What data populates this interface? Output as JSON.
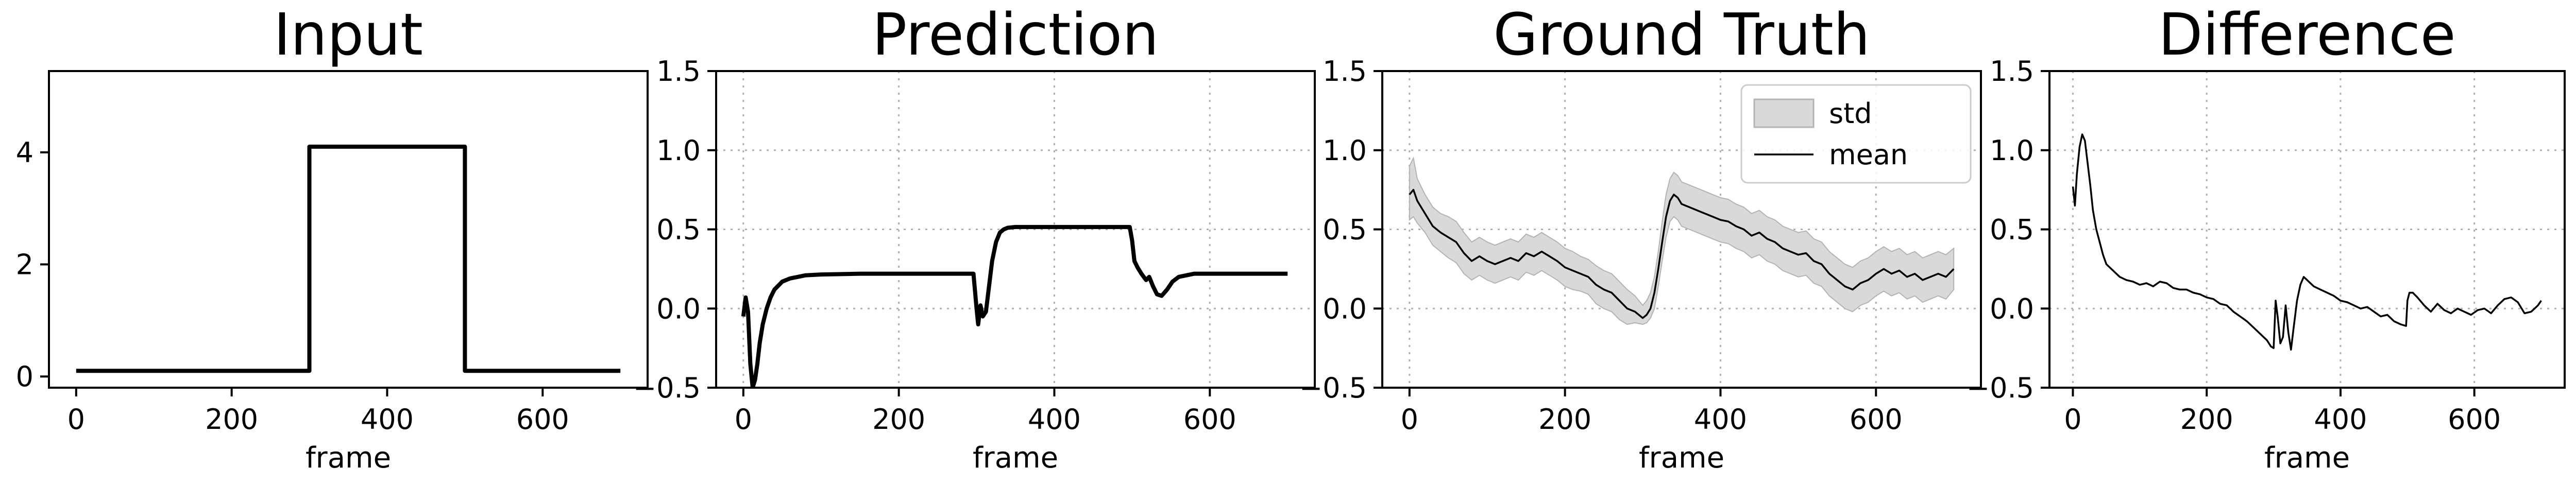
{
  "chart_data": [
    {
      "type": "line",
      "title": "Input",
      "xlabel": "frame",
      "ylabel": "",
      "xlim": [
        -35,
        735
      ],
      "ylim": [
        -0.2,
        5.45
      ],
      "xticks": [
        0,
        200,
        400,
        600
      ],
      "yticks": [
        0,
        2,
        4
      ],
      "ytick_labels": [
        "0",
        "2",
        "4"
      ],
      "grid": false,
      "series": [
        {
          "color": "#000000",
          "x": [
            0,
            300,
            300,
            500,
            500,
            700
          ],
          "y": [
            0.1,
            0.1,
            4.1,
            4.1,
            0.1,
            0.1
          ]
        }
      ]
    },
    {
      "type": "line",
      "title": "Prediction",
      "xlabel": "frame",
      "ylabel": "",
      "xlim": [
        -35,
        735
      ],
      "ylim": [
        -0.5,
        1.5
      ],
      "xticks": [
        0,
        200,
        400,
        600
      ],
      "yticks": [
        -0.5,
        0.0,
        0.5,
        1.0,
        1.5
      ],
      "ytick_labels": [
        "−0.5",
        "0.0",
        "0.5",
        "1.0",
        "1.5"
      ],
      "grid": true,
      "series": [
        {
          "color": "#000000",
          "x": [
            0,
            3,
            6,
            9,
            12,
            15,
            18,
            21,
            25,
            30,
            35,
            40,
            50,
            60,
            70,
            80,
            100,
            150,
            200,
            250,
            296,
            300,
            302,
            305,
            308,
            312,
            315,
            320,
            325,
            330,
            335,
            340,
            350,
            400,
            450,
            497,
            500,
            503,
            507,
            512,
            518,
            522,
            527,
            532,
            538,
            545,
            552,
            560,
            570,
            580,
            600,
            650,
            700
          ],
          "y": [
            -0.05,
            0.07,
            -0.02,
            -0.35,
            -0.5,
            -0.45,
            -0.35,
            -0.22,
            -0.1,
            0.0,
            0.07,
            0.12,
            0.17,
            0.19,
            0.2,
            0.21,
            0.215,
            0.22,
            0.22,
            0.22,
            0.22,
            0.0,
            -0.1,
            0.02,
            -0.05,
            -0.02,
            0.1,
            0.3,
            0.42,
            0.48,
            0.5,
            0.51,
            0.515,
            0.515,
            0.515,
            0.515,
            0.43,
            0.3,
            0.26,
            0.22,
            0.18,
            0.2,
            0.14,
            0.09,
            0.08,
            0.12,
            0.17,
            0.2,
            0.21,
            0.22,
            0.22,
            0.22,
            0.22
          ]
        }
      ]
    },
    {
      "type": "line",
      "title": "Ground Truth",
      "xlabel": "frame",
      "ylabel": "",
      "xlim": [
        -35,
        735
      ],
      "ylim": [
        -0.5,
        1.5
      ],
      "xticks": [
        0,
        200,
        400,
        600
      ],
      "yticks": [
        -0.5,
        0.0,
        0.5,
        1.0,
        1.5
      ],
      "ytick_labels": [
        "−0.5",
        "0.0",
        "0.5",
        "1.0",
        "1.5"
      ],
      "grid": true,
      "legend": [
        "std",
        "mean"
      ],
      "legend_position": "upper right",
      "series": [
        {
          "name": "mean",
          "color": "#000000",
          "x": [
            0,
            5,
            10,
            20,
            30,
            40,
            50,
            60,
            70,
            80,
            90,
            100,
            110,
            120,
            130,
            140,
            150,
            160,
            170,
            180,
            190,
            200,
            210,
            220,
            230,
            240,
            250,
            260,
            270,
            280,
            290,
            300,
            305,
            310,
            315,
            320,
            325,
            330,
            335,
            340,
            345,
            350,
            360,
            370,
            380,
            390,
            400,
            410,
            420,
            430,
            440,
            450,
            460,
            470,
            480,
            490,
            500,
            510,
            520,
            530,
            540,
            550,
            560,
            570,
            580,
            590,
            600,
            610,
            620,
            630,
            640,
            650,
            660,
            670,
            680,
            690,
            700
          ],
          "y": [
            0.72,
            0.75,
            0.68,
            0.6,
            0.52,
            0.48,
            0.45,
            0.42,
            0.35,
            0.3,
            0.33,
            0.3,
            0.28,
            0.3,
            0.32,
            0.3,
            0.35,
            0.33,
            0.36,
            0.33,
            0.3,
            0.26,
            0.24,
            0.22,
            0.2,
            0.15,
            0.12,
            0.1,
            0.05,
            0.0,
            -0.02,
            -0.06,
            -0.04,
            0.0,
            0.1,
            0.25,
            0.42,
            0.58,
            0.68,
            0.72,
            0.7,
            0.66,
            0.64,
            0.62,
            0.6,
            0.58,
            0.56,
            0.55,
            0.52,
            0.5,
            0.46,
            0.48,
            0.44,
            0.42,
            0.38,
            0.36,
            0.34,
            0.35,
            0.3,
            0.28,
            0.22,
            0.18,
            0.14,
            0.12,
            0.16,
            0.18,
            0.22,
            0.25,
            0.22,
            0.24,
            0.2,
            0.22,
            0.18,
            0.2,
            0.22,
            0.2,
            0.25
          ]
        }
      ],
      "band": {
        "name": "std",
        "color": "#d9d9d9",
        "edge_color": "#b3b3b3",
        "x": [
          0,
          5,
          10,
          20,
          30,
          40,
          50,
          60,
          70,
          80,
          90,
          100,
          110,
          120,
          130,
          140,
          150,
          160,
          170,
          180,
          190,
          200,
          210,
          220,
          230,
          240,
          250,
          260,
          270,
          280,
          290,
          300,
          305,
          310,
          315,
          320,
          325,
          330,
          335,
          340,
          345,
          350,
          360,
          370,
          380,
          390,
          400,
          410,
          420,
          430,
          440,
          450,
          460,
          470,
          480,
          490,
          500,
          510,
          520,
          530,
          540,
          550,
          560,
          570,
          580,
          590,
          600,
          610,
          620,
          630,
          640,
          650,
          660,
          670,
          680,
          690,
          700
        ],
        "upper": [
          0.9,
          0.95,
          0.82,
          0.72,
          0.64,
          0.6,
          0.58,
          0.55,
          0.48,
          0.42,
          0.45,
          0.42,
          0.4,
          0.42,
          0.44,
          0.42,
          0.47,
          0.45,
          0.48,
          0.45,
          0.42,
          0.38,
          0.36,
          0.33,
          0.31,
          0.27,
          0.24,
          0.22,
          0.17,
          0.12,
          0.08,
          0.02,
          0.05,
          0.1,
          0.2,
          0.36,
          0.55,
          0.72,
          0.82,
          0.86,
          0.84,
          0.8,
          0.78,
          0.76,
          0.74,
          0.72,
          0.7,
          0.69,
          0.66,
          0.64,
          0.6,
          0.62,
          0.58,
          0.56,
          0.52,
          0.5,
          0.48,
          0.49,
          0.44,
          0.42,
          0.36,
          0.32,
          0.28,
          0.26,
          0.3,
          0.32,
          0.36,
          0.39,
          0.36,
          0.38,
          0.34,
          0.36,
          0.32,
          0.34,
          0.36,
          0.34,
          0.38
        ],
        "lower": [
          0.56,
          0.58,
          0.54,
          0.48,
          0.4,
          0.36,
          0.32,
          0.29,
          0.22,
          0.18,
          0.21,
          0.18,
          0.16,
          0.18,
          0.2,
          0.18,
          0.23,
          0.21,
          0.24,
          0.21,
          0.18,
          0.14,
          0.12,
          0.11,
          0.09,
          0.03,
          0.0,
          -0.02,
          -0.07,
          -0.1,
          -0.09,
          -0.1,
          -0.09,
          -0.06,
          0.0,
          0.14,
          0.3,
          0.45,
          0.55,
          0.58,
          0.56,
          0.52,
          0.5,
          0.48,
          0.46,
          0.44,
          0.42,
          0.41,
          0.38,
          0.36,
          0.32,
          0.34,
          0.3,
          0.28,
          0.24,
          0.22,
          0.2,
          0.21,
          0.16,
          0.14,
          0.08,
          0.04,
          0.0,
          -0.02,
          0.02,
          0.04,
          0.08,
          0.11,
          0.08,
          0.1,
          0.06,
          0.08,
          0.04,
          0.06,
          0.08,
          0.06,
          0.12
        ]
      }
    },
    {
      "type": "line",
      "title": "Difference",
      "xlabel": "frame",
      "ylabel": "",
      "xlim": [
        -35,
        735
      ],
      "ylim": [
        -0.5,
        1.5
      ],
      "xticks": [
        0,
        200,
        400,
        600
      ],
      "yticks": [
        -0.5,
        0.0,
        0.5,
        1.0,
        1.5
      ],
      "ytick_labels": [
        "−0.5",
        "0.0",
        "0.5",
        "1.0",
        "1.5"
      ],
      "grid": true,
      "series": [
        {
          "color": "#000000",
          "x": [
            0,
            3,
            6,
            10,
            14,
            18,
            22,
            26,
            30,
            35,
            40,
            45,
            50,
            60,
            70,
            80,
            90,
            100,
            110,
            120,
            130,
            140,
            150,
            160,
            170,
            180,
            190,
            200,
            210,
            220,
            230,
            240,
            250,
            260,
            270,
            280,
            290,
            296,
            300,
            303,
            306,
            310,
            314,
            318,
            322,
            326,
            330,
            335,
            340,
            345,
            350,
            360,
            370,
            380,
            390,
            400,
            410,
            420,
            430,
            440,
            450,
            460,
            470,
            480,
            490,
            498,
            500,
            503,
            508,
            515,
            525,
            535,
            545,
            555,
            565,
            575,
            585,
            595,
            605,
            615,
            625,
            635,
            645,
            655,
            665,
            675,
            685,
            695,
            700
          ],
          "y": [
            0.77,
            0.65,
            0.85,
            1.02,
            1.1,
            1.06,
            0.92,
            0.78,
            0.62,
            0.5,
            0.42,
            0.34,
            0.28,
            0.24,
            0.2,
            0.18,
            0.17,
            0.15,
            0.16,
            0.14,
            0.17,
            0.16,
            0.13,
            0.12,
            0.12,
            0.1,
            0.09,
            0.07,
            0.06,
            0.03,
            0.02,
            -0.02,
            -0.05,
            -0.08,
            -0.12,
            -0.16,
            -0.2,
            -0.24,
            -0.25,
            0.05,
            -0.05,
            -0.22,
            -0.18,
            0.02,
            -0.15,
            -0.26,
            -0.12,
            0.05,
            0.15,
            0.2,
            0.18,
            0.14,
            0.12,
            0.1,
            0.08,
            0.05,
            0.04,
            0.02,
            0.0,
            0.01,
            -0.02,
            -0.05,
            -0.04,
            -0.08,
            -0.1,
            -0.11,
            0.05,
            0.1,
            0.1,
            0.07,
            0.02,
            -0.02,
            0.03,
            -0.01,
            -0.03,
            0.0,
            -0.02,
            -0.04,
            -0.01,
            0.0,
            -0.03,
            0.02,
            0.06,
            0.07,
            0.04,
            -0.03,
            -0.02,
            0.02,
            0.05
          ]
        }
      ]
    }
  ]
}
